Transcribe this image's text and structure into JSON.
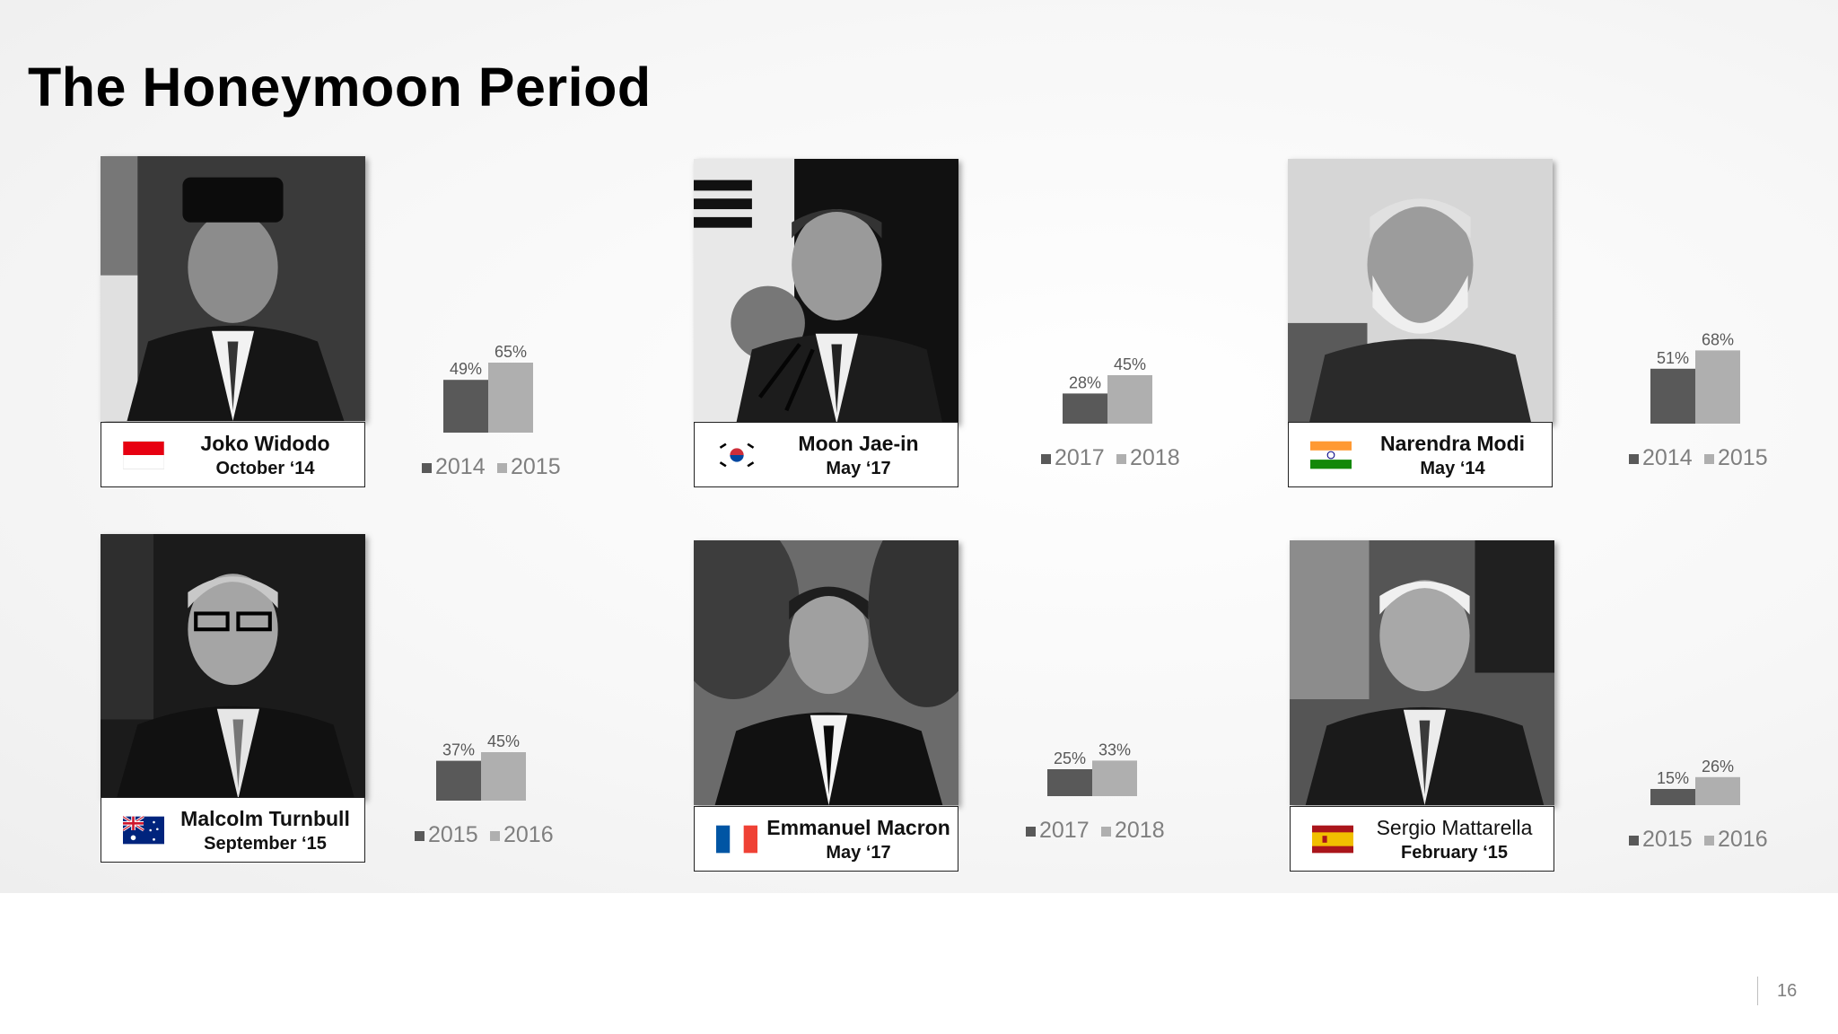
{
  "slide": {
    "title": "The Honeymoon Period",
    "page_number": "16"
  },
  "colors": {
    "first_year": "#595959",
    "second_year": "#afafaf",
    "label_text": "#595959",
    "legend_text": "#7f7f7f"
  },
  "leaders": [
    {
      "name": "Joko Widodo",
      "date": "October ‘14",
      "flag_icon": "indonesia-flag-icon"
    },
    {
      "name": "Moon Jae-in",
      "date": "May ‘17",
      "flag_icon": "south-korea-flag-icon"
    },
    {
      "name": "Narendra Modi",
      "date": "May ‘14",
      "flag_icon": "india-flag-icon"
    },
    {
      "name": "Malcolm Turnbull",
      "date": "September ‘15",
      "flag_icon": "australia-flag-icon"
    },
    {
      "name": "Emmanuel Macron",
      "date": "May ‘17",
      "flag_icon": "france-flag-icon"
    },
    {
      "name": "Sergio Mattarella",
      "date": "February ‘15",
      "flag_icon": "spain-flag-icon"
    }
  ],
  "chart_data": [
    {
      "type": "bar",
      "leader": "Joko Widodo",
      "categories": [
        "2014",
        "2015"
      ],
      "values": [
        49,
        65
      ],
      "labels": [
        "49%",
        "65%"
      ],
      "legend": [
        "2014",
        "2015"
      ],
      "ylim": [
        0,
        100
      ],
      "legend_position": "bottom"
    },
    {
      "type": "bar",
      "leader": "Moon Jae-in",
      "categories": [
        "2017",
        "2018"
      ],
      "values": [
        28,
        45
      ],
      "labels": [
        "28%",
        "45%"
      ],
      "legend": [
        "2017",
        "2018"
      ],
      "ylim": [
        0,
        100
      ],
      "legend_position": "bottom"
    },
    {
      "type": "bar",
      "leader": "Narendra Modi",
      "categories": [
        "2014",
        "2015"
      ],
      "values": [
        51,
        68
      ],
      "labels": [
        "51%",
        "68%"
      ],
      "legend": [
        "2014",
        "2015"
      ],
      "ylim": [
        0,
        100
      ],
      "legend_position": "bottom"
    },
    {
      "type": "bar",
      "leader": "Malcolm Turnbull",
      "categories": [
        "2015",
        "2016"
      ],
      "values": [
        37,
        45
      ],
      "labels": [
        "37%",
        "45%"
      ],
      "legend": [
        "2015",
        "2016"
      ],
      "ylim": [
        0,
        100
      ],
      "legend_position": "bottom"
    },
    {
      "type": "bar",
      "leader": "Emmanuel Macron",
      "categories": [
        "2017",
        "2018"
      ],
      "values": [
        25,
        33
      ],
      "labels": [
        "25%",
        "33%"
      ],
      "legend": [
        "2017",
        "2018"
      ],
      "ylim": [
        0,
        100
      ],
      "legend_position": "bottom"
    },
    {
      "type": "bar",
      "leader": "Sergio Mattarella",
      "categories": [
        "2015",
        "2016"
      ],
      "values": [
        15,
        26
      ],
      "labels": [
        "15%",
        "26%"
      ],
      "legend": [
        "2015",
        "2016"
      ],
      "ylim": [
        0,
        100
      ],
      "legend_position": "bottom"
    }
  ]
}
